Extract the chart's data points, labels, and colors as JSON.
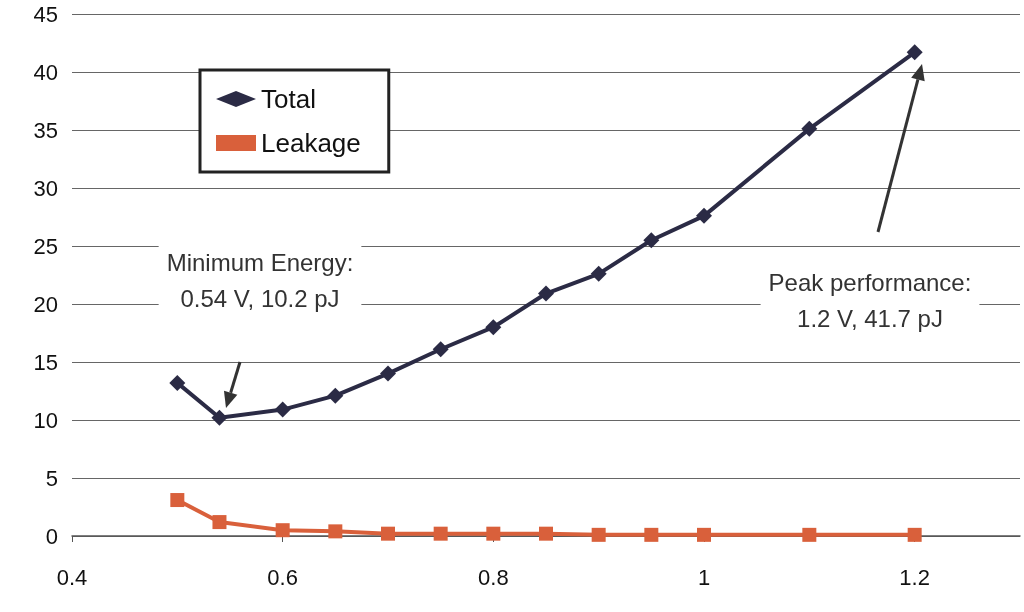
{
  "chart_data": {
    "type": "line",
    "x": [
      0.5,
      0.54,
      0.6,
      0.65,
      0.7,
      0.75,
      0.8,
      0.85,
      0.9,
      0.95,
      1.0,
      1.1,
      1.2
    ],
    "series": [
      {
        "name": "Total",
        "color": "#2b2b45",
        "marker": "diamond",
        "values": [
          13.2,
          10.2,
          10.9,
          12.1,
          14.0,
          16.1,
          18.0,
          20.9,
          22.6,
          25.5,
          27.6,
          35.1,
          41.7
        ]
      },
      {
        "name": "Leakage",
        "color": "#d9603b",
        "marker": "square",
        "values": [
          3.1,
          1.2,
          0.5,
          0.4,
          0.2,
          0.2,
          0.2,
          0.2,
          0.1,
          0.1,
          0.1,
          0.1,
          0.1
        ]
      }
    ],
    "xlim": [
      0.4,
      1.3
    ],
    "xticks": [
      0.4,
      0.6,
      0.8,
      1,
      1.2
    ],
    "ylim": [
      0,
      45
    ],
    "yticks": [
      0,
      5,
      10,
      15,
      20,
      25,
      30,
      35,
      40,
      45
    ],
    "grid": "y",
    "legend": "top left",
    "annotations": [
      "Minimum Energy:\n0.54 V, 10.2 pJ",
      "Peak performance:\n1.2 V, 41.7 pJ"
    ]
  }
}
